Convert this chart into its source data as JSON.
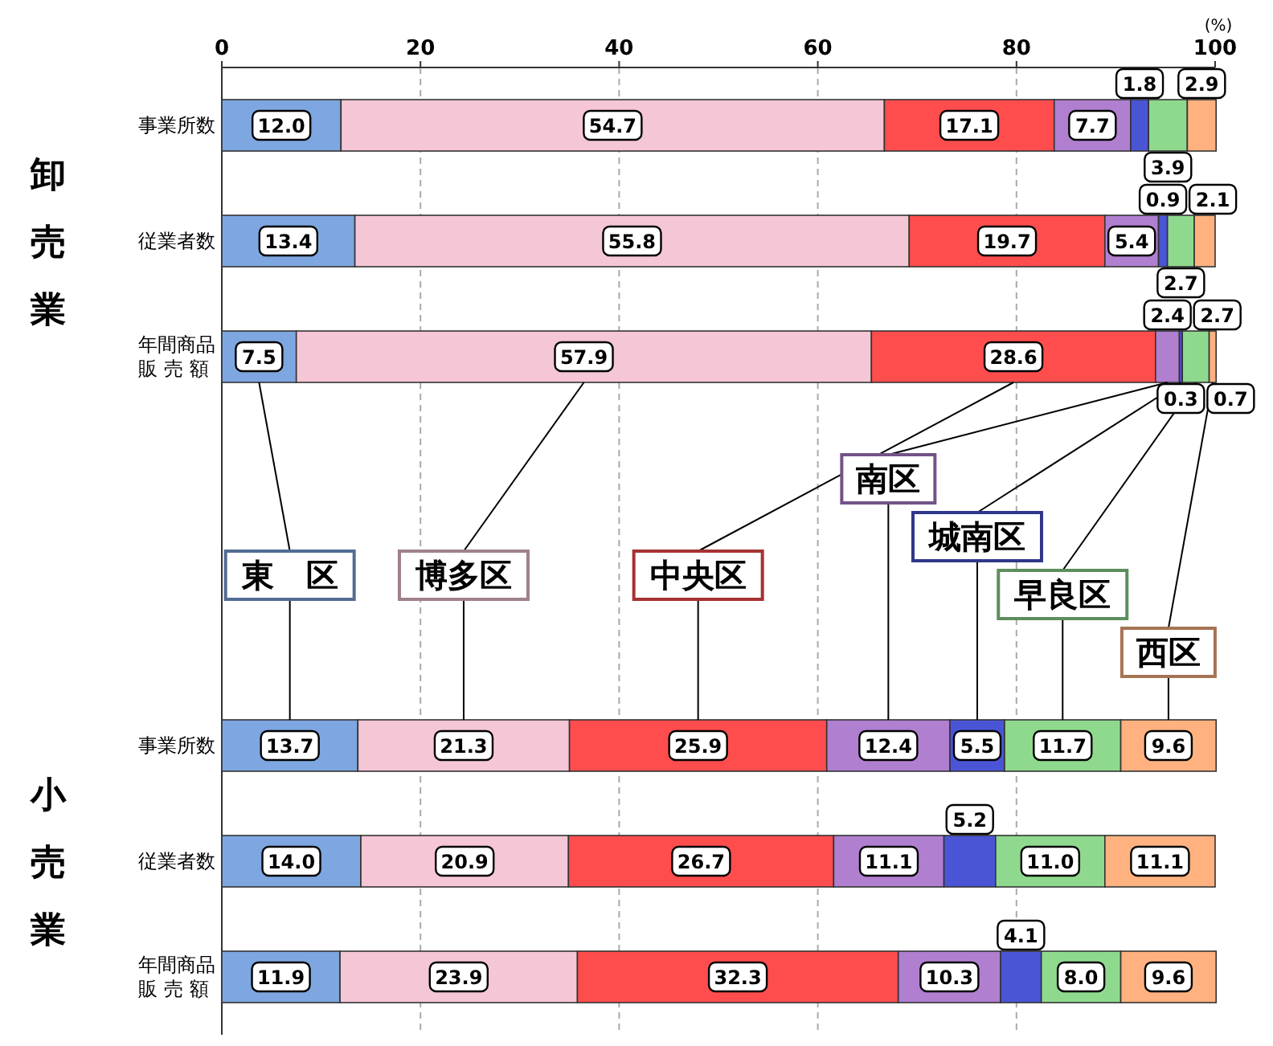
{
  "chart_data": {
    "type": "bar",
    "orientation": "horizontal",
    "stacked": true,
    "xlabel": "(%)",
    "categories": [
      "事業所数",
      "従業者数",
      "年間商品販売額",
      null,
      "事業所数",
      "従業者数",
      "年間商品販売額"
    ],
    "series": [
      {
        "name": "東　区",
        "color": "#7ea6e0",
        "values": [
          12.0,
          13.4,
          7.5,
          null,
          13.7,
          14.0,
          11.9
        ],
        "value_labels": [
          "12.0",
          "13.4",
          "7.5",
          null,
          "13.7",
          "14.0",
          "11.9"
        ]
      },
      {
        "name": "博多区",
        "color": "#f4c6d6",
        "values": [
          54.7,
          55.8,
          57.9,
          null,
          21.3,
          20.9,
          23.9
        ],
        "value_labels": [
          "54.7",
          "55.8",
          "57.9",
          null,
          "21.3",
          "20.9",
          "23.9"
        ]
      },
      {
        "name": "中央区",
        "color": "#ff4d4d",
        "values": [
          17.1,
          19.7,
          28.6,
          null,
          25.9,
          26.7,
          32.3
        ],
        "value_labels": [
          "17.1",
          "19.7",
          "28.6",
          null,
          "25.9",
          "26.7",
          "32.3"
        ]
      },
      {
        "name": "南区",
        "color": "#b07fd0",
        "values": [
          7.7,
          5.4,
          2.4,
          null,
          12.4,
          11.1,
          10.3
        ],
        "value_labels": [
          "7.7",
          "5.4",
          "2.4",
          null,
          "12.4",
          "11.1",
          "10.3"
        ]
      },
      {
        "name": "城南区",
        "color": "#4a55d6",
        "values": [
          1.8,
          0.9,
          0.3,
          null,
          5.5,
          5.2,
          4.1
        ],
        "value_labels": [
          "1.8",
          "0.9",
          "0.3",
          null,
          "5.5",
          "5.2",
          "4.1"
        ]
      },
      {
        "name": "早良区",
        "color": "#8fd98f",
        "values": [
          3.9,
          2.7,
          2.7,
          null,
          11.7,
          11.0,
          8.0
        ],
        "value_labels": [
          "3.9",
          "2.7",
          "2.7",
          null,
          "11.7",
          "11.0",
          "8.0"
        ]
      },
      {
        "name": "西区",
        "color": "#ffb27f",
        "values": [
          2.9,
          2.1,
          0.7,
          null,
          9.6,
          11.1,
          9.6
        ],
        "value_labels": [
          "2.9",
          "2.1",
          "0.7",
          null,
          "9.6",
          "11.1",
          "9.6"
        ]
      }
    ],
    "xlim": [
      0,
      100
    ],
    "xticks": [
      0,
      20,
      40,
      60,
      80,
      100
    ],
    "grid": "x",
    "legend": "center",
    "annotations": [
      "卸売業",
      "小売業"
    ]
  }
}
